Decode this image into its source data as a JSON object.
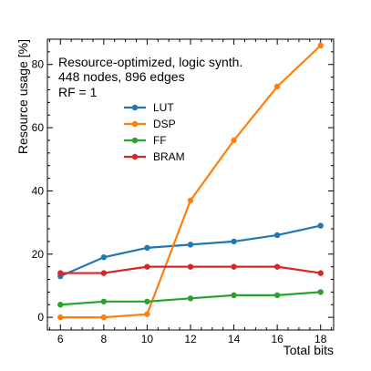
{
  "chart_data": {
    "type": "line",
    "annotations": [
      "Resource-optimized, logic synth.",
      "448 nodes, 896 edges",
      "RF = 1"
    ],
    "xlabel": "Total bits",
    "ylabel": "Resource usage [%]",
    "x": [
      6,
      8,
      10,
      12,
      14,
      16,
      18
    ],
    "xlim": [
      5.4,
      18.6
    ],
    "ylim": [
      -4,
      88
    ],
    "xticks": [
      6,
      8,
      10,
      12,
      14,
      16,
      18
    ],
    "yticks": [
      0,
      20,
      40,
      60,
      80
    ],
    "grid": false,
    "legend_position": "upper-left",
    "series": [
      {
        "name": "LUT",
        "color": "#1f77b4",
        "values": [
          13,
          19,
          22,
          23,
          24,
          26,
          29
        ]
      },
      {
        "name": "DSP",
        "color": "#ff7f0e",
        "values": [
          0,
          0,
          1,
          37,
          56,
          73,
          86
        ]
      },
      {
        "name": "FF",
        "color": "#2ca02c",
        "values": [
          4,
          5,
          5,
          6,
          7,
          7,
          8
        ]
      },
      {
        "name": "BRAM",
        "color": "#d62728",
        "values": [
          14,
          14,
          16,
          16,
          16,
          16,
          14
        ]
      }
    ]
  }
}
